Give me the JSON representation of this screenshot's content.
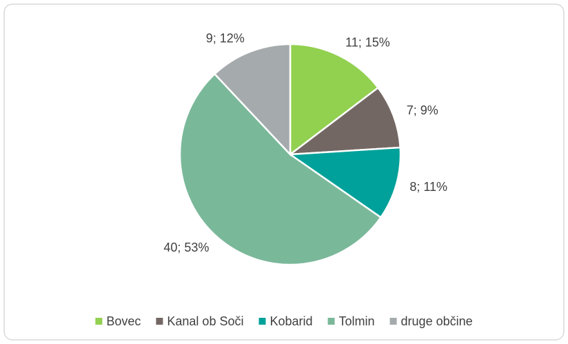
{
  "chart_data": {
    "type": "pie",
    "categories": [
      "Bovec",
      "Kanal ob Soči",
      "Kobarid",
      "Tolmin",
      "druge občine"
    ],
    "values": [
      11,
      7,
      8,
      40,
      9
    ],
    "value_labels": [
      "11; 15%",
      "7; 9%",
      "8; 11%",
      "40; 53%",
      "9; 12%"
    ],
    "colors": [
      "#92d050",
      "#736764",
      "#00a19a",
      "#7ab89a",
      "#a5aaad"
    ],
    "legend": "bottom"
  }
}
